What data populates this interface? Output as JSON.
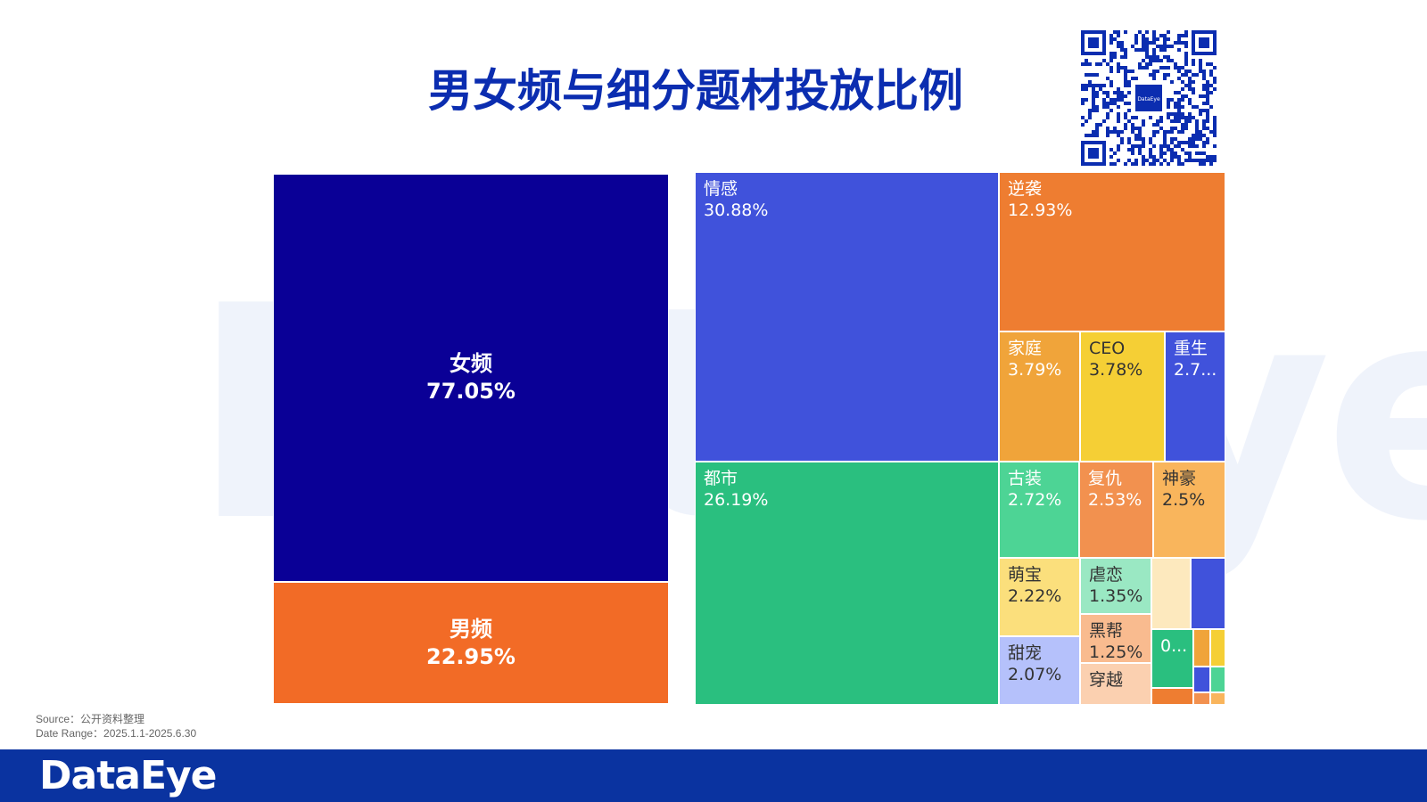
{
  "title": "男女频与细分题材投放比例",
  "watermark": "DataEye",
  "qr_center_text": "DataEye",
  "source_lines": [
    "Source：公开资料整理",
    "Date Range：2025.1.1-2025.6.30"
  ],
  "footer_logo": "DataEye",
  "colors": {
    "title": "#0b2db0",
    "footer": "#0a33a0"
  },
  "chart_data": [
    {
      "type": "treemap",
      "title": "",
      "items": [
        {
          "label": "女频",
          "value": 77.05,
          "value_text": "77.05%",
          "color": "#0a0096"
        },
        {
          "label": "男频",
          "value": 22.95,
          "value_text": "22.95%",
          "color": "#f26b26"
        }
      ]
    },
    {
      "type": "treemap",
      "title": "",
      "items": [
        {
          "label": "情感",
          "value": 30.88,
          "value_text": "30.88%",
          "color": "#4052db"
        },
        {
          "label": "逆袭",
          "value": 12.93,
          "value_text": "12.93%",
          "color": "#ee7d31"
        },
        {
          "label": "家庭",
          "value": 3.79,
          "value_text": "3.79%",
          "color": "#f0a43a"
        },
        {
          "label": "CEO",
          "value": 3.78,
          "value_text": "3.78%",
          "color": "#f5cf35"
        },
        {
          "label": "重生",
          "value": 2.7,
          "value_text": "2.7...",
          "color": "#4052db"
        },
        {
          "label": "都市",
          "value": 26.19,
          "value_text": "26.19%",
          "color": "#2abf7f"
        },
        {
          "label": "古装",
          "value": 2.72,
          "value_text": "2.72%",
          "color": "#4dd495"
        },
        {
          "label": "复仇",
          "value": 2.53,
          "value_text": "2.53%",
          "color": "#f2914f"
        },
        {
          "label": "神豪",
          "value": 2.5,
          "value_text": "2.5%",
          "color": "#f9b55c"
        },
        {
          "label": "萌宝",
          "value": 2.22,
          "value_text": "2.22%",
          "color": "#fbdf7c"
        },
        {
          "label": "虐恋",
          "value": 1.35,
          "value_text": "1.35%",
          "color": "#9ae8c3"
        },
        {
          "label": "黑帮",
          "value": 1.25,
          "value_text": "1.25%",
          "color": "#f9bb8f"
        },
        {
          "label": "甜宠",
          "value": 2.07,
          "value_text": "2.07%",
          "color": "#b5c1fb"
        },
        {
          "label": "穿越",
          "value": null,
          "value_text": "",
          "color": "#fbd0b0"
        },
        {
          "label": "",
          "value": null,
          "value_text": "",
          "color": "#fde9be"
        },
        {
          "label": "",
          "value": null,
          "value_text": "",
          "color": "#4052db"
        },
        {
          "label": "",
          "value": null,
          "value_text": "0...",
          "color": "#2abf7f"
        },
        {
          "label": "",
          "value": null,
          "value_text": "",
          "color": "#f0a43a"
        },
        {
          "label": "",
          "value": null,
          "value_text": "",
          "color": "#f5cf35"
        },
        {
          "label": "",
          "value": null,
          "value_text": "",
          "color": "#4052db"
        },
        {
          "label": "",
          "value": null,
          "value_text": "",
          "color": "#4dd495"
        },
        {
          "label": "",
          "value": null,
          "value_text": "",
          "color": "#ee7d31"
        },
        {
          "label": "",
          "value": null,
          "value_text": "",
          "color": "#f2914f"
        },
        {
          "label": "",
          "value": null,
          "value_text": "",
          "color": "#f9b55c"
        }
      ]
    }
  ]
}
